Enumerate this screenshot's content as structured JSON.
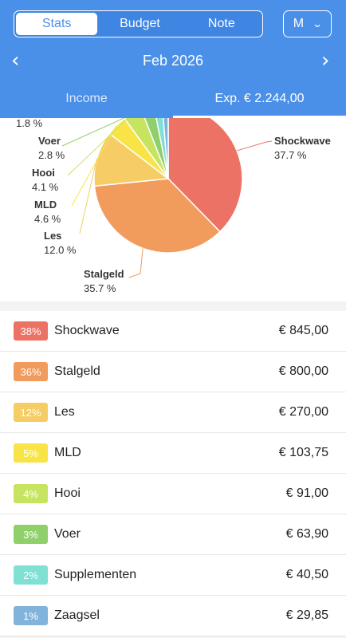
{
  "header": {
    "tabs": [
      "Stats",
      "Budget",
      "Note"
    ],
    "active_tab": "Stats",
    "period_button": "M",
    "month": "Feb 2026",
    "income_tab": "Income",
    "expense_tab": "Exp. € 2.244,00"
  },
  "colors": {
    "primary": "#4a90e8",
    "Shockwave": "#ed7266",
    "Stalgeld": "#f19b5c",
    "Les": "#f5cd64",
    "MLD": "#f8e447",
    "Hooi": "#c7e461",
    "Voer": "#8fd06c",
    "Supplementen": "#7fe0d3",
    "Zaagsel": "#81b4dd"
  },
  "chart_data": {
    "type": "pie",
    "slices": [
      {
        "label": "Shockwave",
        "percent": 37.7,
        "percent_text": "37.7 %"
      },
      {
        "label": "Stalgeld",
        "percent": 35.7,
        "percent_text": "35.7 %"
      },
      {
        "label": "Les",
        "percent": 12.0,
        "percent_text": "12.0 %"
      },
      {
        "label": "MLD",
        "percent": 4.6,
        "percent_text": "4.6 %"
      },
      {
        "label": "Hooi",
        "percent": 4.1,
        "percent_text": "4.1 %"
      },
      {
        "label": "Voer",
        "percent": 2.8,
        "percent_text": "2.8 %"
      },
      {
        "label": "Supplementen",
        "percent": 1.8,
        "percent_text": "1.8 %"
      },
      {
        "label": "Zaagsel",
        "percent": 1.3
      }
    ]
  },
  "list": [
    {
      "badge": "38%",
      "name": "Shockwave",
      "amount": "€ 845,00"
    },
    {
      "badge": "36%",
      "name": "Stalgeld",
      "amount": "€ 800,00"
    },
    {
      "badge": "12%",
      "name": "Les",
      "amount": "€ 270,00"
    },
    {
      "badge": "5%",
      "name": "MLD",
      "amount": "€ 103,75"
    },
    {
      "badge": "4%",
      "name": "Hooi",
      "amount": "€ 91,00"
    },
    {
      "badge": "3%",
      "name": "Voer",
      "amount": "€ 63,90"
    },
    {
      "badge": "2%",
      "name": "Supplementen",
      "amount": "€ 40,50"
    },
    {
      "badge": "1%",
      "name": "Zaagsel",
      "amount": "€ 29,85"
    }
  ]
}
